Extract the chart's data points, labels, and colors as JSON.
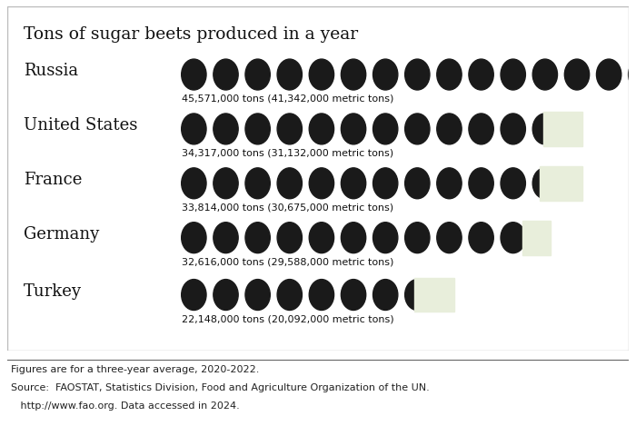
{
  "title": "Tons of sugar beets produced in a year",
  "bg_color": "#e8eedb",
  "outer_bg": "#ffffff",
  "text_color": "#111111",
  "circle_color": "#1a1a1a",
  "countries": [
    "Russia",
    "United States",
    "France",
    "Germany",
    "Turkey"
  ],
  "values_tons": [
    45571000,
    34317000,
    33814000,
    32616000,
    22148000
  ],
  "labels": [
    "45,571,000 tons (41,342,000 metric tons)",
    "34,317,000 tons (31,132,000 metric tons)",
    "33,814,000 tons (30,675,000 metric tons)",
    "32,616,000 tons (29,588,000 metric tons)",
    "22,148,000 tons (20,092,000 metric tons)"
  ],
  "unit_size": 3000000,
  "footnote_line1": "Figures are for a three-year average, 2020-2022.",
  "footnote_line2": "Source:  FAOSTAT, Statistics Division, Food and Agriculture Organization of the UN.",
  "footnote_line3": "   http://www.fao.org. Data accessed in 2024."
}
